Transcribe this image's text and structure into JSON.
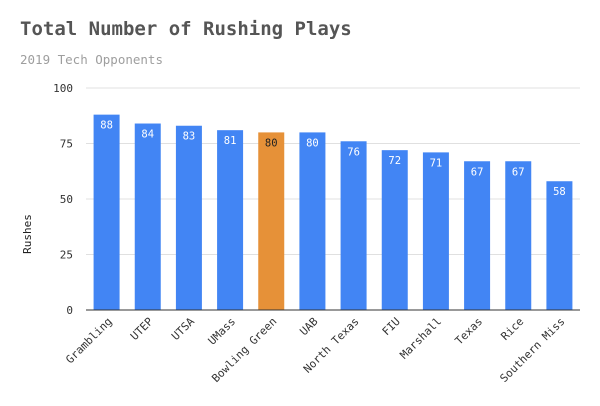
{
  "chart_data": {
    "type": "bar",
    "title": "Total Number of Rushing Plays",
    "subtitle": "2019 Tech Opponents",
    "xlabel": "",
    "ylabel": "Rushes",
    "ylim": [
      0,
      100
    ],
    "yticks": [
      0,
      25,
      50,
      75,
      100
    ],
    "grid": true,
    "legend": "none",
    "categories": [
      "Grambling",
      "UTEP",
      "UTSA",
      "UMass",
      "Bowling Green",
      "UAB",
      "North Texas",
      "FIU",
      "Marshall",
      "Texas",
      "Rice",
      "Southern Miss"
    ],
    "values": [
      88,
      84,
      83,
      81,
      80,
      80,
      76,
      72,
      71,
      67,
      67,
      58
    ],
    "bar_colors": [
      "#4285f4",
      "#4285f4",
      "#4285f4",
      "#4285f4",
      "#e69138",
      "#4285f4",
      "#4285f4",
      "#4285f4",
      "#4285f4",
      "#4285f4",
      "#4285f4",
      "#4285f4"
    ],
    "label_colors": [
      "#ffffff",
      "#ffffff",
      "#ffffff",
      "#ffffff",
      "#222222",
      "#ffffff",
      "#ffffff",
      "#ffffff",
      "#ffffff",
      "#ffffff",
      "#ffffff",
      "#ffffff"
    ]
  }
}
